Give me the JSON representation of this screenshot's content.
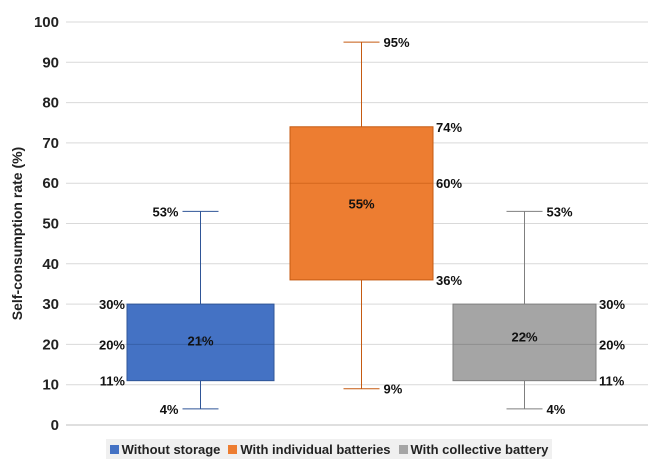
{
  "chart_data": {
    "type": "box",
    "ylabel": "Self-consumption rate (%)",
    "ylim": [
      0,
      100
    ],
    "yticks": [
      0,
      10,
      20,
      30,
      40,
      50,
      60,
      70,
      80,
      90,
      100
    ],
    "legend_position": "bottom",
    "grid": true,
    "series": [
      {
        "name": "Without storage",
        "color": "#4472C4",
        "min": 4,
        "q1": 11,
        "median": 20,
        "mean": 21,
        "q3": 30,
        "max": 53,
        "labels": {
          "min": "4%",
          "q1": "11%",
          "median": "20%",
          "mean": "21%",
          "q3": "30%",
          "max": "53%"
        }
      },
      {
        "name": "With individual batteries",
        "color": "#ED7D31",
        "min": 9,
        "q1": 36,
        "median": 60,
        "mean": 55,
        "q3": 74,
        "max": 95,
        "labels": {
          "min": "9%",
          "q1": "36%",
          "median": "60%",
          "mean": "55%",
          "q3": "74%",
          "max": "95%"
        }
      },
      {
        "name": "With collective battery",
        "color": "#A5A5A5",
        "min": 4,
        "q1": 11,
        "median": 20,
        "mean": 22,
        "q3": 30,
        "max": 53,
        "labels": {
          "min": "4%",
          "q1": "11%",
          "median": "20%",
          "mean": "22%",
          "q3": "30%",
          "max": "53%"
        }
      }
    ]
  }
}
